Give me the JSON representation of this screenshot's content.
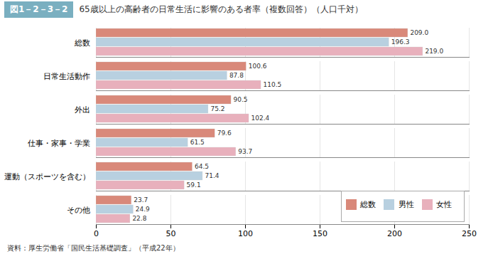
{
  "chart_data": {
    "type": "bar",
    "orientation": "horizontal",
    "title": "65歳以上の高齢者の日常生活に影響のある者率（複数回答）（人口千対）",
    "annotations": [
      "図1－2－3－2",
      "資料：厚生労働省「国民生活基礎調査」（平成22年）"
    ],
    "categories": [
      "総数",
      "日常生活動作",
      "外出",
      "仕事・家事・学業",
      "運動（スポーツを含む）",
      "その他"
    ],
    "series": [
      {
        "name": "総数",
        "color": "#d9897a",
        "values": [
          209.0,
          100.6,
          90.5,
          79.6,
          64.5,
          23.7
        ],
        "value_labels": [
          "209.0",
          "100.6",
          "90.5",
          "79.6",
          "64.5",
          "23.7"
        ]
      },
      {
        "name": "男性",
        "color": "#b8d0e0",
        "values": [
          196.3,
          87.8,
          75.2,
          61.5,
          71.4,
          24.9
        ],
        "value_labels": [
          "196.3",
          "87.8",
          "75.2",
          "61.5",
          "71.4",
          "24.9"
        ]
      },
      {
        "name": "女性",
        "color": "#e8b0bc",
        "values": [
          219.0,
          110.5,
          102.4,
          93.7,
          59.1,
          22.8
        ],
        "value_labels": [
          "219.0",
          "110.5",
          "102.4",
          "93.7",
          "59.1",
          "22.8"
        ]
      }
    ],
    "xlim": [
      0,
      250
    ],
    "xticks": [
      0,
      50,
      100,
      150,
      200,
      250
    ],
    "grid": true,
    "legend": "lower right",
    "data_labels": true
  }
}
